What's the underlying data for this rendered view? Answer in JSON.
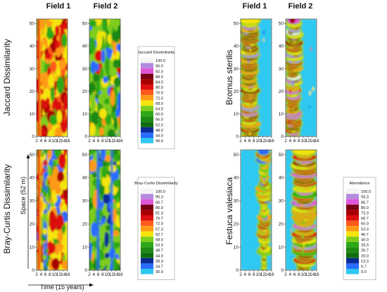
{
  "columns": {
    "left": [
      "Field 1",
      "Field 2"
    ],
    "right": [
      "Field 1",
      "Field 2"
    ]
  },
  "rows": {
    "left": [
      "Jaccard Dissimilarity",
      "Bray-Curtis Dissimilarity"
    ],
    "right": [
      "Bromus sterilis",
      "Festuca valesiaca"
    ]
  },
  "axes": {
    "x_title": "Time (15 years)",
    "y_title": "Space (52 m)"
  },
  "chart_data": [
    {
      "type": "heatmap",
      "panel": "Jaccard Dissimilarity",
      "fields": [
        "Field 1",
        "Field 2"
      ],
      "xlim": [
        2,
        16
      ],
      "xticks": [
        2,
        4,
        6,
        8,
        10,
        12,
        14,
        16
      ],
      "ylim": [
        0,
        52
      ],
      "yticks": [
        0,
        10,
        20,
        30,
        40,
        50
      ],
      "legend": {
        "title": "Jaccard Dissimilarity",
        "levels": [
          100.0,
          96.0,
          92.0,
          88.0,
          84.0,
          80.0,
          76.0,
          72.0,
          68.0,
          64.0,
          60.0,
          56.0,
          52.0,
          48.0,
          44.0,
          40.0
        ],
        "level_labels": [
          "100.0",
          "96.0",
          "92.0",
          "88.0",
          "84.0",
          "80.0",
          "76.0",
          "72.0",
          "68.0",
          "64.0",
          "60.0",
          "56.0",
          "52.0",
          "48.0",
          "44.0",
          "40.0"
        ],
        "colors": [
          "#f4f4f4",
          "#b48be0",
          "#e055d8",
          "#780014",
          "#a80000",
          "#dc1010",
          "#ff5a1e",
          "#ff9a14",
          "#f4e40a",
          "#7ecd1e",
          "#2ea818",
          "#1e8a14",
          "#0e6e0e",
          "#0a2a96",
          "#2a6cff",
          "#2ec8f0"
        ]
      }
    },
    {
      "type": "heatmap",
      "panel": "Bray-Curtis Dissimilarity",
      "fields": [
        "Field 1",
        "Field 2"
      ],
      "xlim": [
        2,
        16
      ],
      "xticks": [
        2,
        4,
        6,
        8,
        10,
        12,
        14,
        16
      ],
      "ylim": [
        0,
        52
      ],
      "yticks": [
        0,
        10,
        20,
        30,
        40,
        50
      ],
      "legend": {
        "title": "Bray-Curtis Dissimilarity",
        "levels": [
          100.0,
          95.3,
          90.7,
          86.0,
          81.3,
          76.7,
          72.0,
          67.3,
          62.7,
          58.0,
          53.3,
          48.7,
          44.0,
          39.3,
          34.7,
          30.0
        ],
        "level_labels": [
          "100.0",
          "95.3",
          "90.7",
          "86.0",
          "81.3",
          "76.7",
          "72.0",
          "67.3",
          "62.7",
          "58.0",
          "53.3",
          "48.7",
          "44.0",
          "39.3",
          "34.7",
          "30.0"
        ],
        "colors": [
          "#f4f4f4",
          "#b48be0",
          "#e055d8",
          "#780014",
          "#a80000",
          "#dc1010",
          "#ff5a1e",
          "#ff9a14",
          "#f4e40a",
          "#7ecd1e",
          "#2ea818",
          "#1e8a14",
          "#0e6e0e",
          "#0a2a96",
          "#2a6cff",
          "#2ec8f0"
        ]
      }
    },
    {
      "type": "heatmap",
      "panel": "Bromus sterilis",
      "fields": [
        "Field 1",
        "Field 2"
      ],
      "xlim": [
        2,
        16
      ],
      "xticks": [
        2,
        4,
        6,
        8,
        10,
        12,
        14,
        16
      ],
      "ylim": [
        0,
        52
      ],
      "yticks": [
        0,
        10,
        20,
        30,
        40,
        50
      ]
    },
    {
      "type": "heatmap",
      "panel": "Festuca valesiaca",
      "fields": [
        "Field 1",
        "Field 2"
      ],
      "xlim": [
        2,
        16
      ],
      "xticks": [
        2,
        4,
        6,
        8,
        10,
        12,
        14,
        16
      ],
      "ylim": [
        0,
        52
      ],
      "yticks": [
        0,
        10,
        20,
        30,
        40,
        50
      ],
      "legend": {
        "title": "Abundance",
        "levels": [
          100.0,
          93.3,
          86.7,
          80.0,
          73.3,
          66.7,
          60.0,
          53.3,
          46.7,
          40.0,
          33.3,
          26.7,
          20.0,
          13.3,
          6.7,
          0.0
        ],
        "level_labels": [
          "100.0",
          "93.3",
          "86.7",
          "80.0",
          "73.3",
          "66.7",
          "60.0",
          "53.3",
          "46.7",
          "40.0",
          "33.3",
          "26.7",
          "20.0",
          "13.3",
          "6.7",
          "0.0"
        ],
        "colors": [
          "#f4f4f4",
          "#b48be0",
          "#e055d8",
          "#780014",
          "#a80000",
          "#dc1010",
          "#ff5a1e",
          "#ff9a14",
          "#f4e40a",
          "#7ecd1e",
          "#2ea818",
          "#1e8a14",
          "#0e6e0e",
          "#0a2a96",
          "#2a6cff",
          "#2ec8f0"
        ]
      }
    }
  ]
}
